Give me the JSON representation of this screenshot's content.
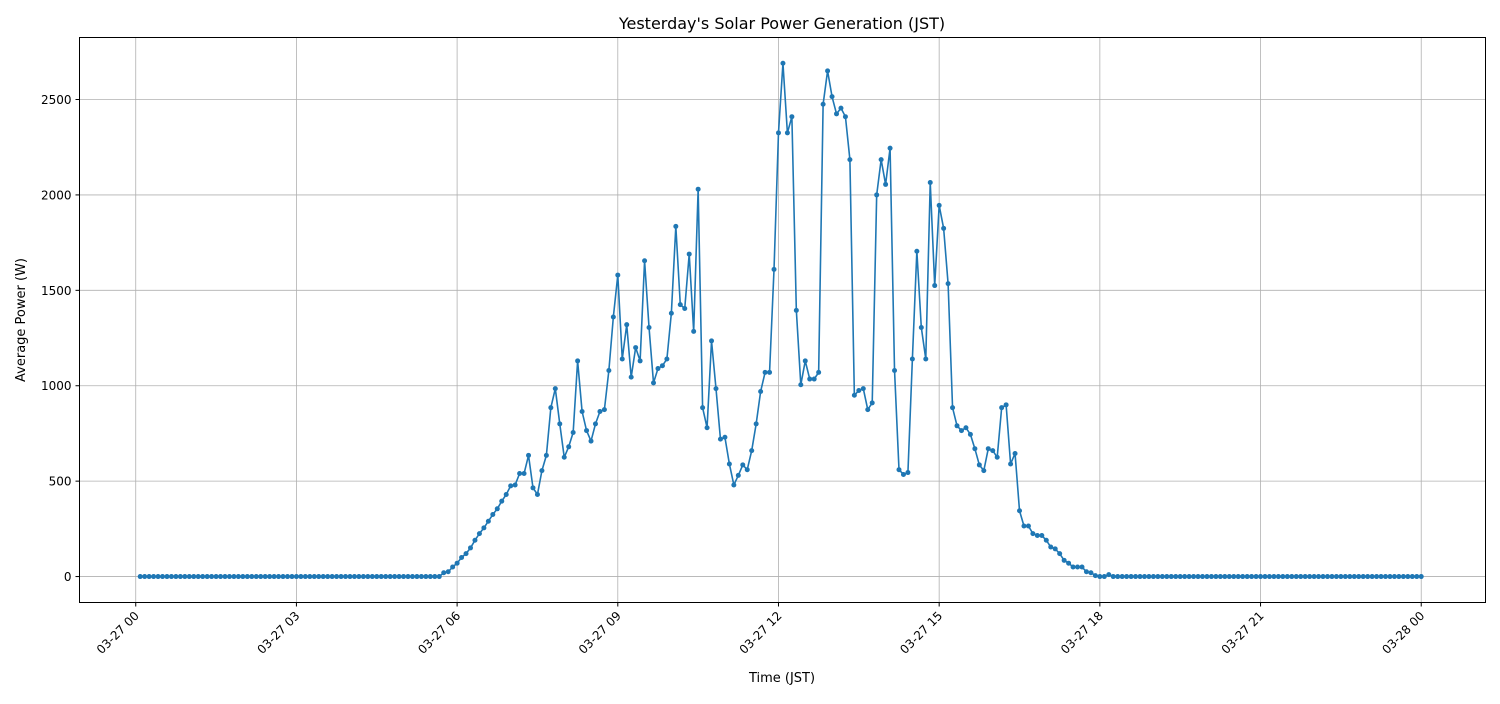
{
  "chart_data": {
    "type": "line",
    "title": "Yesterday's Solar Power Generation (JST)",
    "xlabel": "Time (JST)",
    "ylabel": "Average Power (W)",
    "x_start": "03-27 00:05",
    "x_step_minutes": 5,
    "x_ticks": [
      "03-27 00",
      "03-27 03",
      "03-27 06",
      "03-27 09",
      "03-27 12",
      "03-27 15",
      "03-27 18",
      "03-27 21",
      "03-28 00"
    ],
    "y_ticks": [
      0,
      500,
      1000,
      1500,
      2000,
      2500
    ],
    "xlim_hours": [
      -1.05,
      25.2
    ],
    "ylim": [
      -136,
      2825
    ],
    "grid": true,
    "marker": "circle",
    "color": "#1f77b4",
    "series": [
      {
        "values": [
          0,
          0,
          0,
          0,
          0,
          0,
          0,
          0,
          0,
          0,
          0,
          0,
          0,
          0,
          0,
          0,
          0,
          0,
          0,
          0,
          0,
          0,
          0,
          0,
          0,
          0,
          0,
          0,
          0,
          0,
          0,
          0,
          0,
          0,
          0,
          0,
          0,
          0,
          0,
          0,
          0,
          0,
          0,
          0,
          0,
          0,
          0,
          0,
          0,
          0,
          0,
          0,
          0,
          0,
          0,
          0,
          0,
          0,
          0,
          0,
          0,
          0,
          0,
          0,
          0,
          0,
          0,
          0,
          20,
          25,
          50,
          70,
          100,
          120,
          150,
          190,
          225,
          255,
          290,
          325,
          355,
          395,
          430,
          475,
          480,
          540,
          540,
          635,
          465,
          430,
          555,
          635,
          885,
          985,
          800,
          625,
          680,
          755,
          1130,
          865,
          765,
          710,
          800,
          865,
          875,
          1080,
          1360,
          1580,
          1140,
          1320,
          1045,
          1200,
          1130,
          1655,
          1305,
          1015,
          1090,
          1105,
          1140,
          1380,
          1835,
          1425,
          1405,
          1690,
          1285,
          2030,
          885,
          780,
          1235,
          985,
          720,
          730,
          590,
          480,
          530,
          585,
          560,
          660,
          800,
          970,
          1070,
          1070,
          1610,
          2325,
          2690,
          2325,
          2410,
          1395,
          1005,
          1130,
          1035,
          1035,
          1070,
          2475,
          2650,
          2515,
          2425,
          2455,
          2410,
          2185,
          950,
          975,
          985,
          875,
          910,
          2000,
          2185,
          2055,
          2245,
          1080,
          560,
          535,
          545,
          1140,
          1705,
          1305,
          1140,
          2065,
          1525,
          1945,
          1825,
          1535,
          885,
          790,
          765,
          780,
          745,
          670,
          585,
          555,
          670,
          660,
          625,
          885,
          900,
          590,
          645,
          345,
          265,
          265,
          225,
          215,
          215,
          190,
          155,
          145,
          120,
          85,
          70,
          50,
          50,
          50,
          25,
          20,
          5,
          0,
          0,
          10,
          0,
          0,
          0,
          0,
          0,
          0,
          0,
          0,
          0,
          0,
          0,
          0,
          0,
          0,
          0,
          0,
          0,
          0,
          0,
          0,
          0,
          0,
          0,
          0,
          0,
          0,
          0,
          0,
          0,
          0,
          0,
          0,
          0,
          0,
          0,
          0,
          0,
          0,
          0,
          0,
          0,
          0,
          0,
          0,
          0,
          0,
          0,
          0,
          0,
          0,
          0,
          0,
          0,
          0,
          0,
          0,
          0,
          0,
          0,
          0,
          0,
          0,
          0,
          0,
          0,
          0,
          0,
          0,
          0,
          0
        ]
      }
    ]
  }
}
